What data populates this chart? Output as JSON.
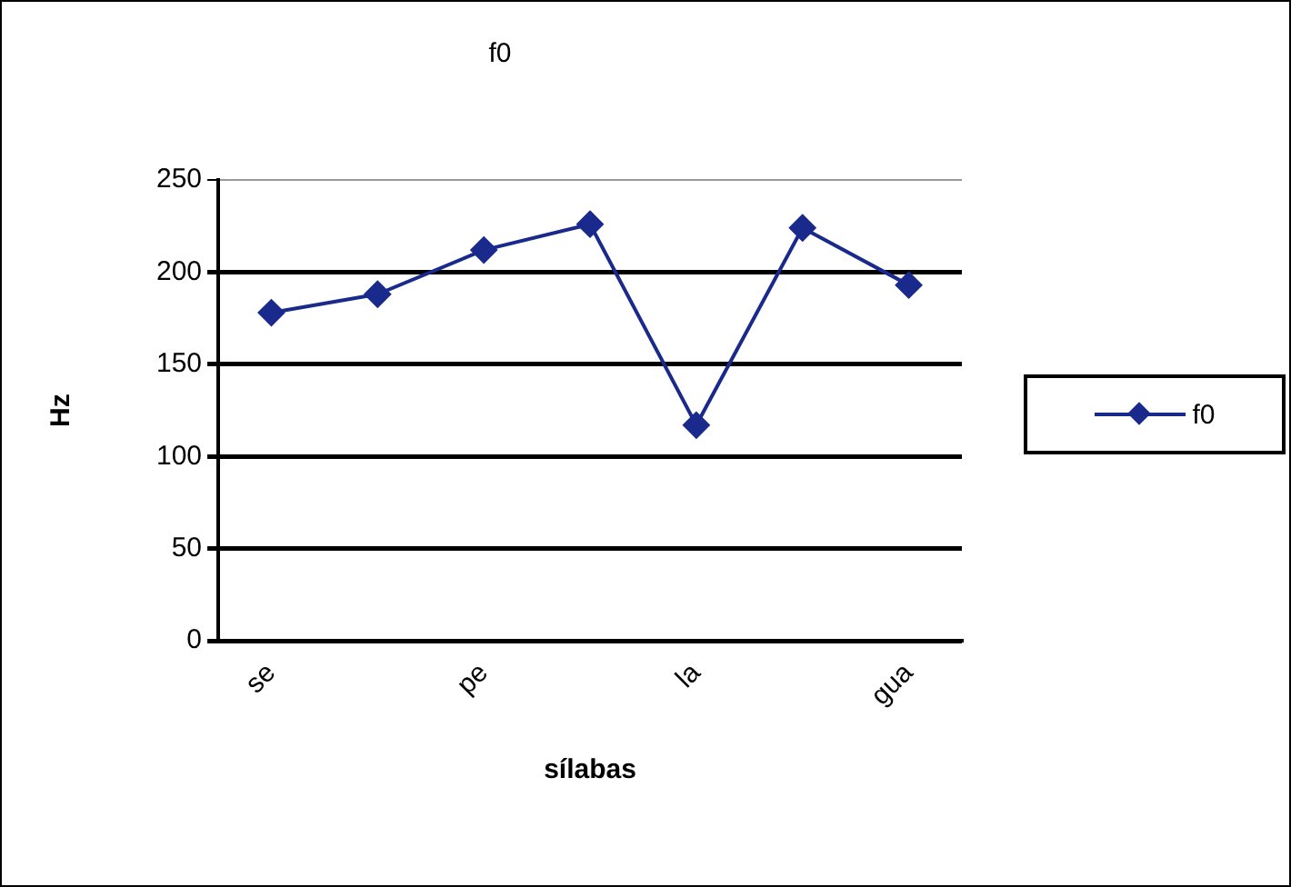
{
  "chart_data": {
    "type": "line",
    "title": "f0",
    "xlabel": "sílabas",
    "ylabel": "Hz",
    "categories": [
      "se",
      null,
      "pe",
      null,
      "la",
      null,
      "gua"
    ],
    "series": [
      {
        "name": "f0",
        "color": "#1a2a8c",
        "values": [
          178,
          188,
          212,
          226,
          117,
          224,
          193
        ]
      }
    ],
    "ylim": [
      0,
      250
    ],
    "yticks": [
      0,
      50,
      100,
      150,
      200,
      250
    ],
    "grid": "y",
    "legend": "right",
    "marker": "diamond",
    "line_style": "solid"
  }
}
